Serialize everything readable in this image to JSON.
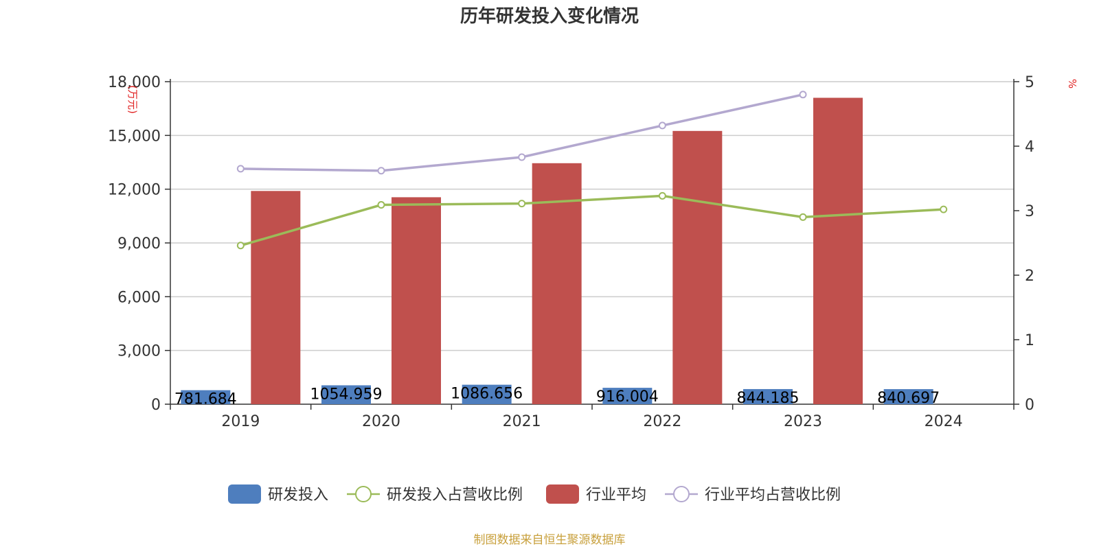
{
  "chart_data": {
    "type": "bar",
    "title": "历年研发投入变化情况",
    "categories": [
      "2019",
      "2020",
      "2021",
      "2022",
      "2023",
      "2024"
    ],
    "left_axis": {
      "unit_label": "(万元)",
      "min": 0,
      "max": 18000,
      "ticks": [
        0,
        3000,
        6000,
        9000,
        12000,
        15000,
        18000
      ],
      "tick_labels": [
        "0",
        "3,000",
        "6,000",
        "9,000",
        "12,000",
        "15,000",
        "18,000"
      ]
    },
    "right_axis": {
      "unit_label": "%",
      "min": 0,
      "max": 5,
      "ticks": [
        0,
        1,
        2,
        3,
        4,
        5
      ],
      "tick_labels": [
        "0",
        "1",
        "2",
        "3",
        "4",
        "5"
      ]
    },
    "series": [
      {
        "name": "研发投入",
        "type": "bar",
        "axis": "left",
        "color": "#4e7ebe",
        "values": [
          781.684,
          1054.959,
          1086.656,
          916.004,
          844.185,
          840.697
        ],
        "data_labels": [
          "781.684",
          "1054.959",
          "1086.656",
          "916.004",
          "844.185",
          "840.697"
        ]
      },
      {
        "name": "研发投入占营收比例",
        "type": "line",
        "axis": "right",
        "color": "#9bbb59",
        "values": [
          2.46,
          3.09,
          3.11,
          3.23,
          2.9,
          3.02
        ]
      },
      {
        "name": "行业平均",
        "type": "bar",
        "axis": "left",
        "color": "#c0504d",
        "values": [
          11900,
          11550,
          13450,
          15250,
          17100,
          null
        ]
      },
      {
        "name": "行业平均占营收比例",
        "type": "line",
        "axis": "right",
        "color": "#b3a8cf",
        "values": [
          3.65,
          3.62,
          3.83,
          4.32,
          4.8,
          null
        ]
      }
    ],
    "legend_position": "bottom",
    "grid": true
  },
  "footer": {
    "source": "制图数据来自恒生聚源数据库"
  }
}
